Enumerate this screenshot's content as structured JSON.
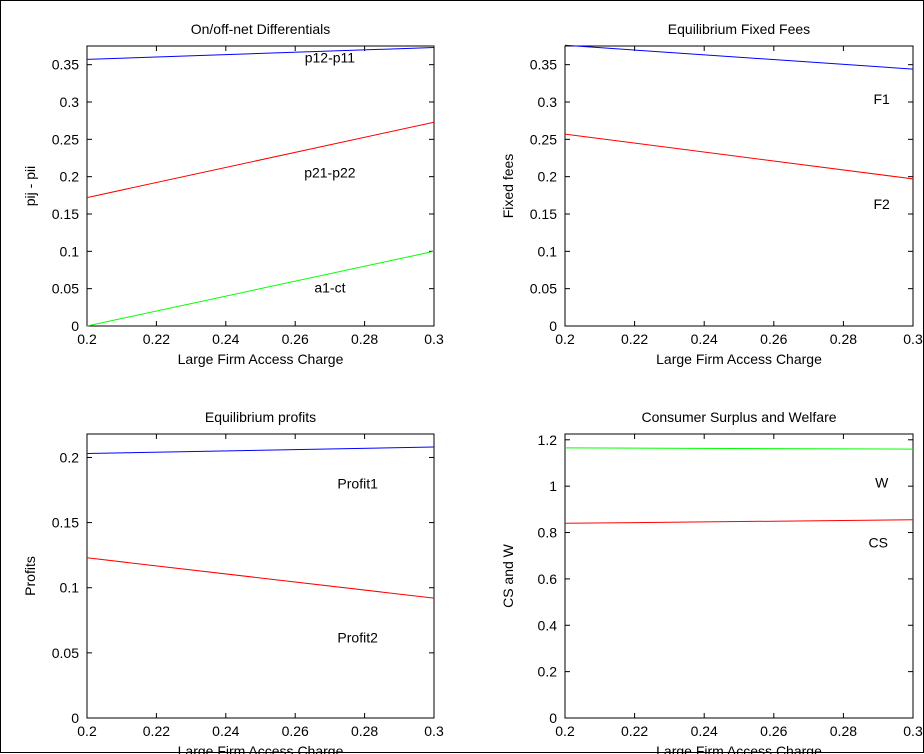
{
  "figure": {
    "background": "#ffffff",
    "series_colors": {
      "blue": "#0000ff",
      "red": "#ff0000",
      "green": "#00ff00"
    }
  },
  "chart_data": [
    {
      "type": "line",
      "title": "On/off-net Differentials",
      "xlabel": "Large Firm Access Charge",
      "ylabel": "pij - pii",
      "xlim": [
        0.2,
        0.3
      ],
      "ylim": [
        0,
        0.375
      ],
      "xticks": [
        0.2,
        0.22,
        0.24,
        0.26,
        0.28,
        0.3
      ],
      "xtick_labels": [
        "0.2",
        "0.22",
        "0.24",
        "0.26",
        "0.28",
        "0.3"
      ],
      "yticks": [
        0,
        0.05,
        0.1,
        0.15,
        0.2,
        0.25,
        0.3,
        0.35
      ],
      "ytick_labels": [
        "0",
        "0.05",
        "0.1",
        "0.15",
        "0.2",
        "0.25",
        "0.3",
        "0.35"
      ],
      "grid": false,
      "series": [
        {
          "label": "p12-p11",
          "color": "#0000ff",
          "x": [
            0.2,
            0.3
          ],
          "y": [
            0.357,
            0.373
          ],
          "label_at": [
            0.27,
            0.353
          ]
        },
        {
          "label": "p21-p22",
          "color": "#ff0000",
          "x": [
            0.2,
            0.3
          ],
          "y": [
            0.172,
            0.273
          ],
          "label_at": [
            0.27,
            0.199
          ]
        },
        {
          "label": "a1-ct",
          "color": "#00ff00",
          "x": [
            0.2,
            0.3
          ],
          "y": [
            0.0,
            0.1
          ],
          "label_at": [
            0.27,
            0.045
          ]
        }
      ]
    },
    {
      "type": "line",
      "title": "Equilibrium Fixed Fees",
      "xlabel": "Large Firm Access Charge",
      "ylabel": "Fixed fees",
      "xlim": [
        0.2,
        0.3
      ],
      "ylim": [
        0,
        0.375
      ],
      "xticks": [
        0.2,
        0.22,
        0.24,
        0.26,
        0.28,
        0.3
      ],
      "xtick_labels": [
        "0.2",
        "0.22",
        "0.24",
        "0.26",
        "0.28",
        "0.3"
      ],
      "yticks": [
        0,
        0.05,
        0.1,
        0.15,
        0.2,
        0.25,
        0.3,
        0.35
      ],
      "ytick_labels": [
        "0",
        "0.05",
        "0.1",
        "0.15",
        "0.2",
        "0.25",
        "0.3",
        "0.35"
      ],
      "grid": false,
      "series": [
        {
          "label": "F1",
          "color": "#0000ff",
          "x": [
            0.2,
            0.3
          ],
          "y": [
            0.376,
            0.344
          ],
          "label_at": [
            0.291,
            0.297
          ]
        },
        {
          "label": "F2",
          "color": "#ff0000",
          "x": [
            0.2,
            0.3
          ],
          "y": [
            0.257,
            0.197
          ],
          "label_at": [
            0.291,
            0.157
          ]
        }
      ]
    },
    {
      "type": "line",
      "title": "Equilibrium profits",
      "xlabel": "Large Firm Access Charge",
      "ylabel": "Profits",
      "xlim": [
        0.2,
        0.3
      ],
      "ylim": [
        0,
        0.218
      ],
      "xticks": [
        0.2,
        0.22,
        0.24,
        0.26,
        0.28,
        0.3
      ],
      "xtick_labels": [
        "0.2",
        "0.22",
        "0.24",
        "0.26",
        "0.28",
        "0.3"
      ],
      "yticks": [
        0,
        0.05,
        0.1,
        0.15,
        0.2
      ],
      "ytick_labels": [
        "0",
        "0.05",
        "0.1",
        "0.15",
        "0.2"
      ],
      "grid": false,
      "series": [
        {
          "label": "Profit1",
          "color": "#0000ff",
          "x": [
            0.2,
            0.3
          ],
          "y": [
            0.203,
            0.208
          ],
          "label_at": [
            0.278,
            0.176
          ]
        },
        {
          "label": "Profit2",
          "color": "#ff0000",
          "x": [
            0.2,
            0.3
          ],
          "y": [
            0.123,
            0.092
          ],
          "label_at": [
            0.278,
            0.058
          ]
        }
      ]
    },
    {
      "type": "line",
      "title": "Consumer Surplus and Welfare",
      "xlabel": "Large Firm Access Charge",
      "ylabel": "CS and W",
      "xlim": [
        0.2,
        0.3
      ],
      "ylim": [
        0,
        1.225
      ],
      "xticks": [
        0.2,
        0.22,
        0.24,
        0.26,
        0.28,
        0.3
      ],
      "xtick_labels": [
        "0.2",
        "0.22",
        "0.24",
        "0.26",
        "0.28",
        "0.3"
      ],
      "yticks": [
        0,
        0.2,
        0.4,
        0.6,
        0.8,
        1.0,
        1.2
      ],
      "ytick_labels": [
        "0",
        "0.2",
        "0.4",
        "0.6",
        "0.8",
        "1",
        "1.2"
      ],
      "grid": false,
      "series": [
        {
          "label": "W",
          "color": "#00ff00",
          "x": [
            0.2,
            0.3
          ],
          "y": [
            1.165,
            1.16
          ],
          "label_at": [
            0.291,
            0.995
          ]
        },
        {
          "label": "CS",
          "color": "#ff0000",
          "x": [
            0.2,
            0.3
          ],
          "y": [
            0.84,
            0.855
          ],
          "label_at": [
            0.29,
            0.735
          ]
        }
      ]
    }
  ]
}
